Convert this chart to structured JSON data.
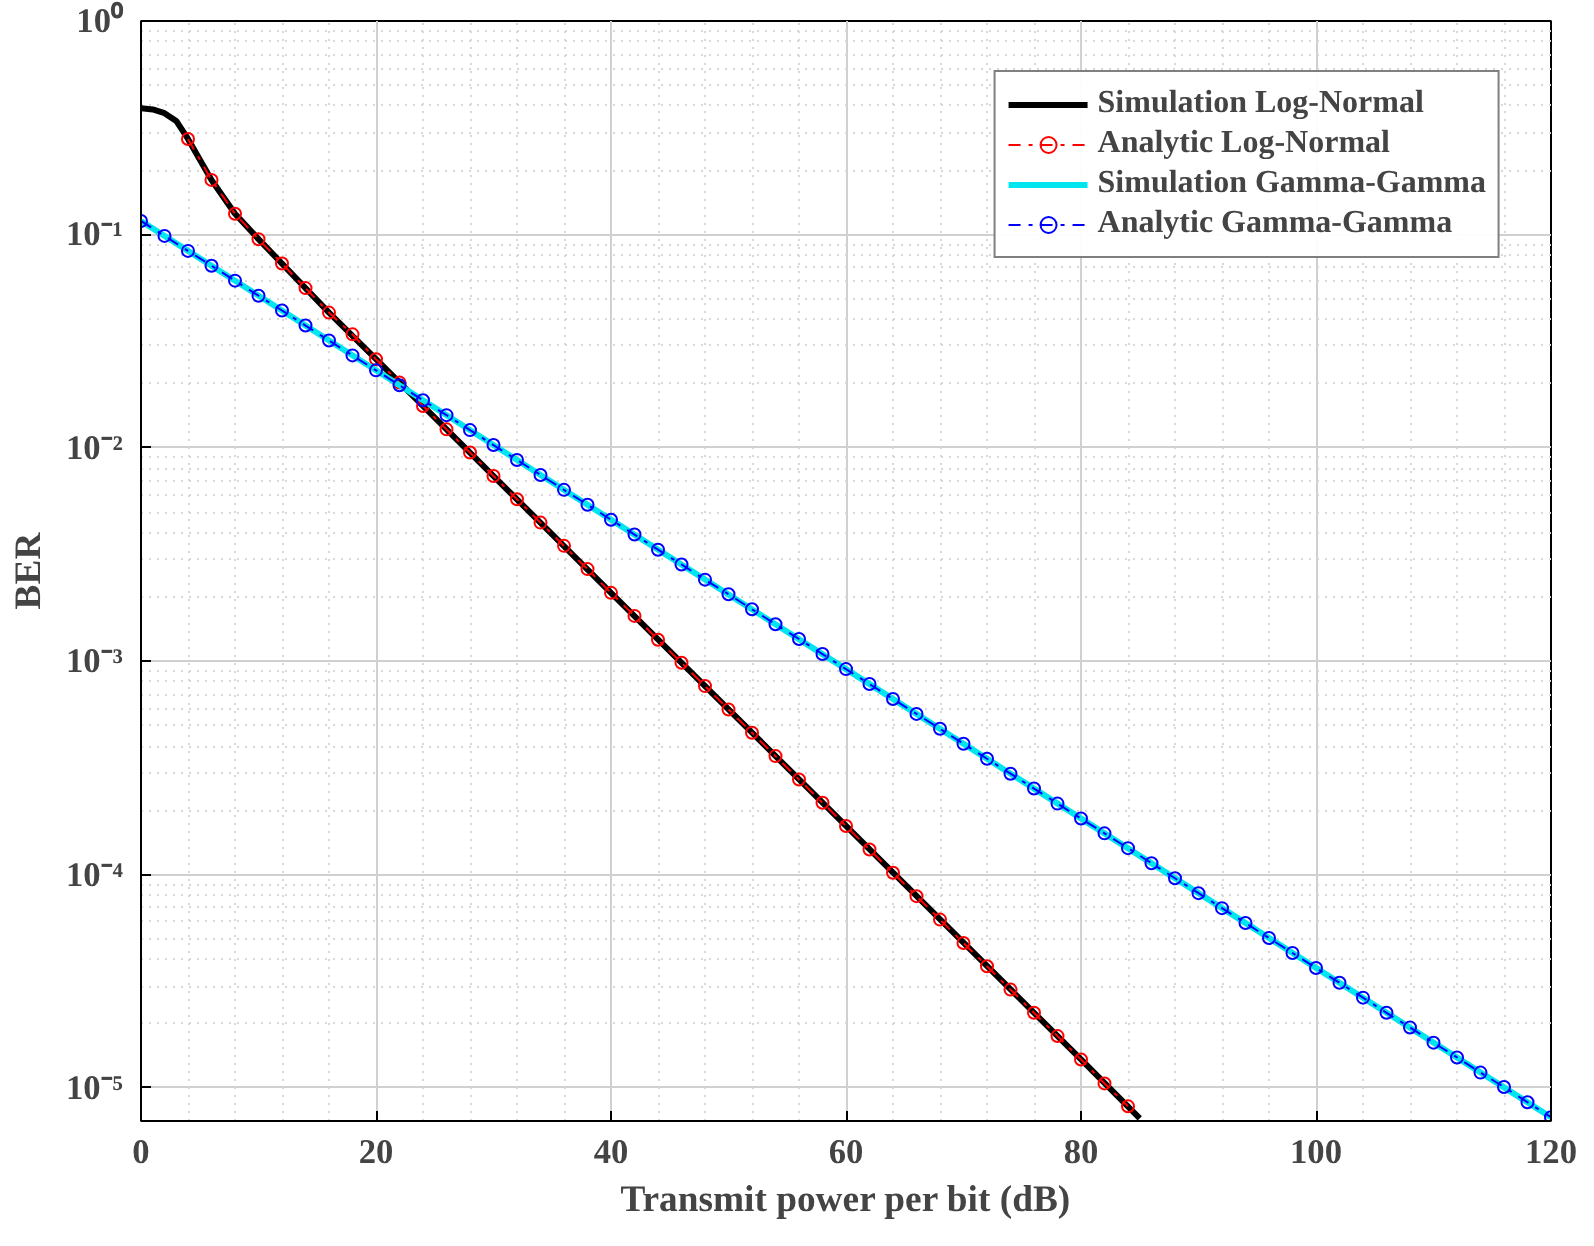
{
  "chart_data": {
    "type": "line",
    "xlabel": "Transmit power per bit (dB)",
    "ylabel": "BER",
    "log": "y",
    "grid": true,
    "legend": "top right",
    "xlim": [
      0,
      120
    ],
    "xticks": [
      0,
      20,
      40,
      60,
      80,
      100,
      120
    ],
    "ylim": [
      7e-06,
      1
    ],
    "yticks": [
      {
        "value": 1,
        "label": "10⁰"
      },
      {
        "value": 0.1,
        "label": "10⁻¹"
      },
      {
        "value": 0.01,
        "label": "10⁻²"
      },
      {
        "value": 0.001,
        "label": "10⁻³"
      },
      {
        "value": 0.0001,
        "label": "10⁻⁴"
      },
      {
        "value": 1e-05,
        "label": "10⁻⁵"
      }
    ],
    "series": [
      {
        "name": "Simulation Log-Normal",
        "color": "#000000",
        "marker": "none",
        "line_style": "solid",
        "x": [
          0,
          1,
          2,
          3,
          4,
          6,
          8,
          10,
          12,
          16,
          20,
          40,
          60,
          80,
          85
        ],
        "values": [
          0.39,
          0.385,
          0.37,
          0.34,
          0.28,
          0.18,
          0.125,
          0.095,
          0.073,
          0.043,
          0.026,
          0.00209,
          0.000169,
          1.36e-05,
          7.2e-06
        ]
      },
      {
        "name": "Analytic Log-Normal",
        "color": "#ff0000",
        "marker": "circle",
        "line_style": "dashed",
        "x": [
          4,
          6,
          8,
          10,
          12,
          14,
          16,
          18,
          20,
          22,
          24,
          26,
          28,
          30,
          32,
          34,
          36,
          38,
          40,
          42,
          44,
          46,
          48,
          50,
          52,
          54,
          56,
          58,
          60,
          62,
          64,
          66,
          68,
          70,
          72,
          74,
          76,
          78,
          80,
          82,
          84
        ],
        "values": [
          0.28,
          0.18,
          0.125,
          0.095,
          0.073,
          0.056,
          0.043,
          0.034,
          0.026,
          0.0202,
          0.0157,
          0.0122,
          0.0095,
          0.00738,
          0.00574,
          0.00446,
          0.00347,
          0.0027,
          0.00209,
          0.00163,
          0.00126,
          0.000983,
          0.000764,
          0.000594,
          0.000462,
          0.000359,
          0.000279,
          0.000217,
          0.000169,
          0.000131,
          0.000102,
          7.92e-05,
          6.15e-05,
          4.78e-05,
          3.72e-05,
          2.89e-05,
          2.25e-05,
          1.75e-05,
          1.36e-05,
          1.05e-05,
          8.2e-06
        ]
      },
      {
        "name": "Simulation Gamma-Gamma",
        "color": "#00e5ee",
        "marker": "none",
        "line_style": "solid",
        "x": [
          0,
          60,
          120
        ],
        "values": [
          0.1156,
          0.000918,
          7.29e-06
        ]
      },
      {
        "name": "Analytic Gamma-Gamma",
        "color": "#0000ff",
        "marker": "circle",
        "line_style": "dashed",
        "x": [
          0,
          2,
          4,
          6,
          8,
          10,
          12,
          14,
          16,
          18,
          20,
          22,
          24,
          26,
          28,
          30,
          32,
          34,
          36,
          38,
          40,
          42,
          44,
          46,
          48,
          50,
          52,
          54,
          56,
          58,
          60,
          62,
          64,
          66,
          68,
          70,
          72,
          74,
          76,
          78,
          80,
          82,
          84,
          86,
          88,
          90,
          92,
          94,
          96,
          98,
          100,
          102,
          104,
          106,
          108,
          110,
          112,
          114,
          116,
          118,
          120
        ],
        "values": [
          0.1156,
          0.0984,
          0.0837,
          0.0713,
          0.0607,
          0.0516,
          0.044,
          0.0374,
          0.0318,
          0.0271,
          0.02306,
          0.01963,
          0.0167,
          0.01422,
          0.0121,
          0.0103,
          0.00877,
          0.00746,
          0.00635,
          0.00541,
          0.0046,
          0.00392,
          0.00333,
          0.00284,
          0.00241,
          0.00206,
          0.00175,
          0.00149,
          0.00127,
          0.00108,
          0.000918,
          0.000781,
          0.000665,
          0.000566,
          0.000482,
          0.00041,
          0.000349,
          0.000297,
          0.000253,
          0.000215,
          0.000183,
          0.000156,
          0.000133,
          0.000113,
          9.61e-05,
          8.18e-05,
          6.96e-05,
          5.93e-05,
          5.04e-05,
          4.29e-05,
          3.65e-05,
          3.11e-05,
          2.65e-05,
          2.25e-05,
          1.92e-05,
          1.63e-05,
          1.39e-05,
          1.18e-05,
          1.01e-05,
          8.57e-06,
          7.29e-06
        ]
      }
    ]
  }
}
